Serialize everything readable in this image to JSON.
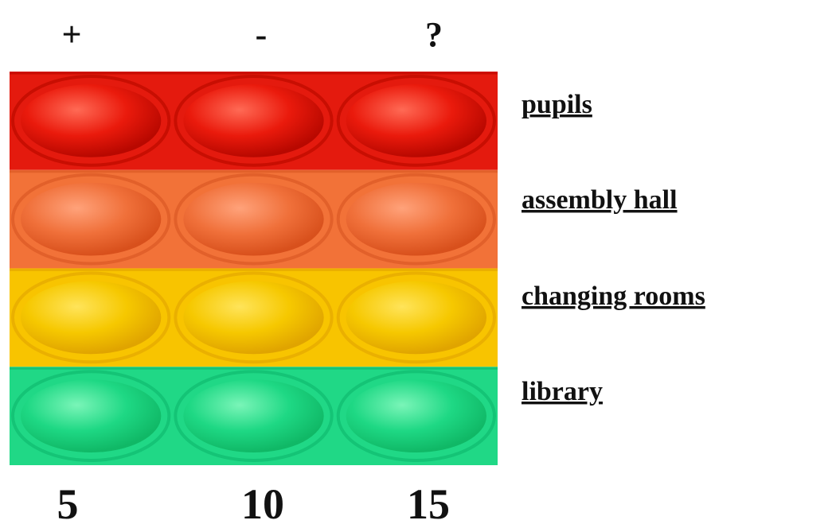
{
  "header": {
    "columns": [
      "+",
      "-",
      "?"
    ]
  },
  "rows": [
    "pupils",
    "assembly hall",
    "changing rooms",
    "library"
  ],
  "footer": {
    "numbers": [
      5,
      10,
      15
    ]
  }
}
